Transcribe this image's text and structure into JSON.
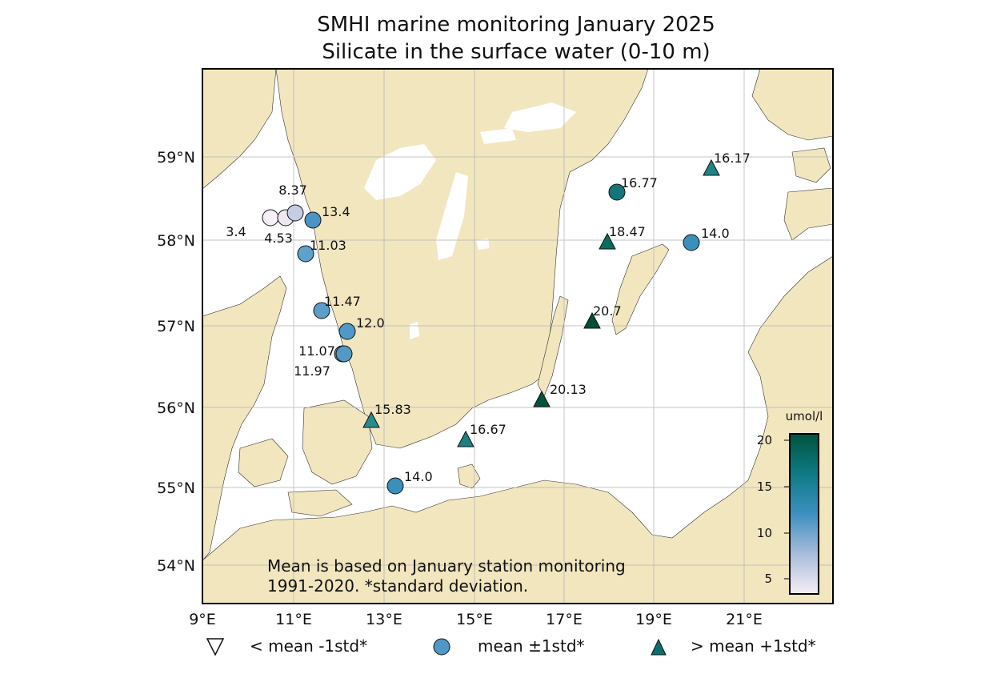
{
  "title": "SMHI marine monitoring January 2025",
  "subtitle": "Silicate in the surface water (0-10 m)",
  "note_lines": [
    "Mean is based on January station monitoring",
    "1991-2020. *standard deviation."
  ],
  "x_ticks": [
    "9°E",
    "11°E",
    "13°E",
    "15°E",
    "17°E",
    "19°E",
    "21°E"
  ],
  "y_ticks": [
    "54°N",
    "55°N",
    "56°N",
    "57°N",
    "58°N",
    "59°N"
  ],
  "colorbar": {
    "unit": "umol/l",
    "ticks": [
      "5",
      "10",
      "15",
      "20"
    ],
    "stops": [
      "#f6eef6",
      "#a9bcda",
      "#3c90c0",
      "#0f7a85",
      "#00533d"
    ]
  },
  "legend": [
    {
      "symbol": "triangle-down-icon",
      "label": "< mean -1std*"
    },
    {
      "symbol": "circle-icon",
      "label": "mean ±1std*"
    },
    {
      "symbol": "triangle-up-icon",
      "label": "> mean +1std*"
    }
  ],
  "colors": {
    "land": "#f2e6bf",
    "water": "#ffffff",
    "circle": "#4f97c6",
    "triangle": "#0b6f6e"
  },
  "stations": [
    {
      "value": "3.4",
      "marker": "circle",
      "fill": "#f7f1f7"
    },
    {
      "value": "4.53",
      "marker": "circle",
      "fill": "#efe6f0"
    },
    {
      "value": "8.37",
      "marker": "circle",
      "fill": "#c3cde3"
    },
    {
      "value": "13.4",
      "marker": "circle",
      "fill": "#4b93c3"
    },
    {
      "value": "11.03",
      "marker": "circle",
      "fill": "#5ea1cb"
    },
    {
      "value": "11.47",
      "marker": "circle",
      "fill": "#5a9ec9"
    },
    {
      "value": "12.0",
      "marker": "circle",
      "fill": "#5298c6"
    },
    {
      "value": "11.07",
      "marker": "circle",
      "fill": "#5d9fca"
    },
    {
      "value": "11.97",
      "marker": "circle",
      "fill": "#5499c6"
    },
    {
      "value": "15.83",
      "marker": "triangle",
      "fill": "#2a8a8e"
    },
    {
      "value": "14.0",
      "marker": "circle",
      "fill": "#3a90bd"
    },
    {
      "value": "16.67",
      "marker": "triangle",
      "fill": "#1b8183"
    },
    {
      "value": "20.13",
      "marker": "triangle",
      "fill": "#00533d"
    },
    {
      "value": "20.7",
      "marker": "triangle",
      "fill": "#005039"
    },
    {
      "value": "18.47",
      "marker": "triangle",
      "fill": "#0a6c5f"
    },
    {
      "value": "16.77",
      "marker": "circle",
      "fill": "#137779"
    },
    {
      "value": "14.0",
      "marker": "circle",
      "fill": "#3a90bd"
    },
    {
      "value": "16.17",
      "marker": "triangle",
      "fill": "#1f8486"
    }
  ]
}
